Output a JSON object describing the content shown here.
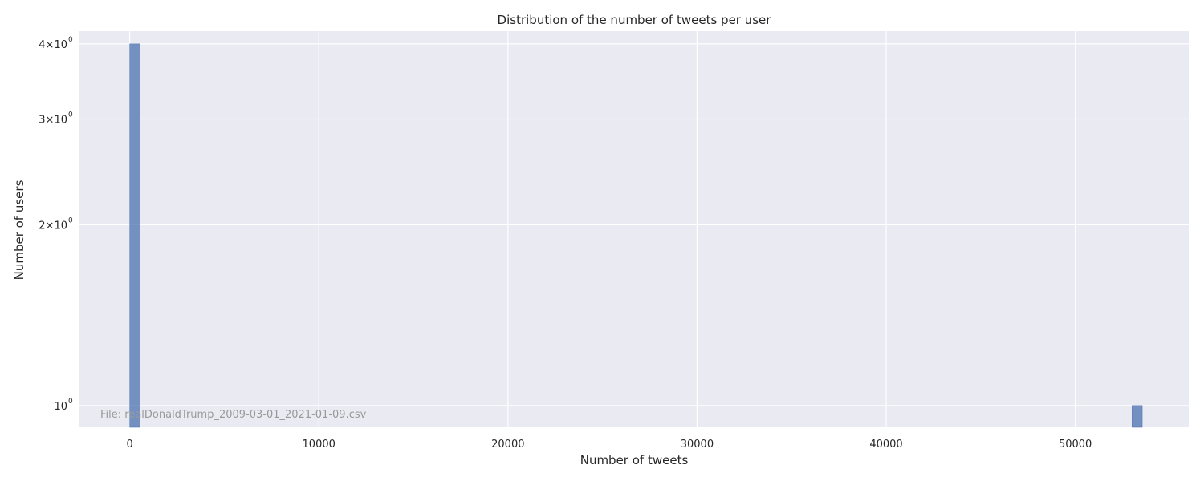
{
  "chart_data": {
    "type": "bar",
    "title": "Distribution of the number of tweets per user",
    "xlabel": "Number of tweets",
    "ylabel": "Number of users",
    "y_scale": "log",
    "grid": true,
    "xlim": [
      -2700,
      56000
    ],
    "ylim": [
      0.92,
      4.2
    ],
    "x_ticks": [
      {
        "value": 0,
        "label": "0"
      },
      {
        "value": 10000,
        "label": "10000"
      },
      {
        "value": 20000,
        "label": "20000"
      },
      {
        "value": 30000,
        "label": "30000"
      },
      {
        "value": 40000,
        "label": "40000"
      },
      {
        "value": 50000,
        "label": "50000"
      }
    ],
    "y_ticks": [
      {
        "value": 1,
        "mantissa": "",
        "base": "10",
        "exp": "0"
      },
      {
        "value": 2,
        "mantissa": "2",
        "base": "10",
        "exp": "0"
      },
      {
        "value": 3,
        "mantissa": "3",
        "base": "10",
        "exp": "0"
      },
      {
        "value": 4,
        "mantissa": "4",
        "base": "10",
        "exp": "0"
      }
    ],
    "bins": [
      {
        "x0": 0,
        "x1": 540,
        "count": 4
      },
      {
        "x0": 53000,
        "x1": 53540,
        "count": 1
      }
    ],
    "annotation": "File: realDonaldTrump_2009-03-01_2021-01-09.csv",
    "colors": {
      "background": "#eaeaf2",
      "grid": "#ffffff",
      "bar": "#4c72b0"
    }
  }
}
